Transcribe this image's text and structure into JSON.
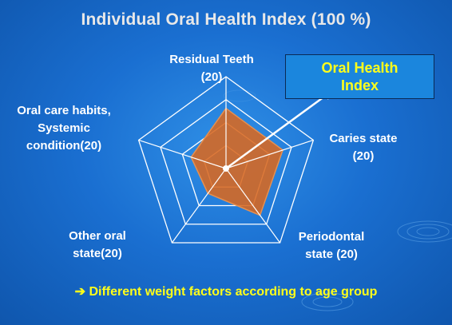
{
  "slide": {
    "title": "Individual Oral Health Index (100 %)",
    "callout": {
      "line1": "Oral Health",
      "line2": "Index"
    },
    "footer": "➔ Different  weight factors according to age group"
  },
  "chart_data": {
    "type": "radar",
    "title": "Individual Oral Health Index (100 %)",
    "axes": [
      {
        "label_lines": [
          "Residual Teeth",
          "(20)"
        ],
        "max": 20,
        "value": 13.1
      },
      {
        "label_lines": [
          "Caries state",
          "(20)"
        ],
        "max": 20,
        "value": 13.0
      },
      {
        "label_lines": [
          "Periodontal",
          "state (20)"
        ],
        "max": 20,
        "value": 12.6
      },
      {
        "label_lines": [
          "Other oral",
          "state(20)"
        ],
        "max": 20,
        "value": 6.7
      },
      {
        "label_lines": [
          "Oral care habits,",
          "Systemic",
          "condition(20)"
        ],
        "max": 20,
        "value": 8.0
      }
    ],
    "grid_levels": 4,
    "colors": {
      "fill": "#d9681f",
      "stroke": "#e08a4a",
      "grid": "#ffffff",
      "callout_text": "#ffff1a",
      "arrow": "#ffffff"
    }
  }
}
